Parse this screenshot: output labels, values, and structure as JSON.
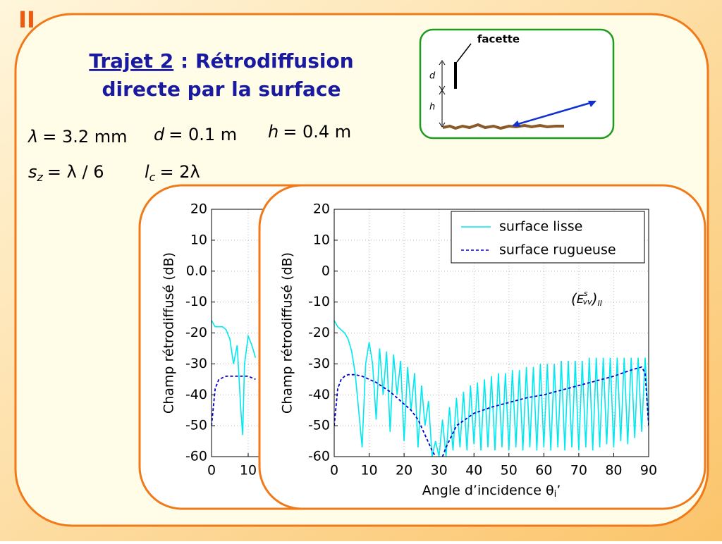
{
  "slide": {
    "section": "II",
    "title_underlined": "Trajet 2",
    "title_rest": " : Rétrodiffusion",
    "title_line2": "directe par la surface",
    "params": [
      {
        "var": "λ",
        "expr": "= 3.2 mm"
      },
      {
        "var": "d",
        "expr": "= 0.1 m"
      },
      {
        "var": "h",
        "expr": "= 0.4 m"
      },
      {
        "var": "s",
        "sub": "z",
        "expr": "= λ / 6"
      },
      {
        "var": "l",
        "sub": "c",
        "expr": "= 2λ"
      }
    ],
    "diagram": {
      "facet_label": "facette",
      "d_label": "d",
      "h_label": "h"
    }
  },
  "chart_data": [
    {
      "type": "line",
      "y_label": "Champ rétrodiffusé (dB)",
      "xlim": [
        0,
        90
      ],
      "xticks": [
        0,
        10
      ],
      "ylim": [
        -60,
        20
      ],
      "yticks": [
        -60,
        -50,
        -40,
        -30,
        -20,
        -10,
        {
          "value": 0,
          "label": "0.0"
        },
        10,
        20
      ],
      "grid": true,
      "series": [
        {
          "name": "surface lisse",
          "color": "#00e8f0",
          "line_style": "solid",
          "x": [
            0,
            1,
            2,
            3,
            4,
            5,
            6,
            7,
            8,
            8.5,
            9,
            10,
            11,
            12
          ],
          "values": [
            -16,
            -18,
            -18,
            -18,
            -19,
            -22,
            -30,
            -24,
            -45,
            -53,
            -30,
            -21,
            -24,
            -28
          ]
        },
        {
          "name": "surface rugueuse",
          "color": "#0000cc",
          "line_style": "dashed",
          "x": [
            0,
            1,
            2,
            4,
            6,
            8,
            10,
            12
          ],
          "values": [
            -50,
            -38,
            -35,
            -34,
            -34,
            -34,
            -34,
            -35
          ]
        }
      ]
    },
    {
      "type": "line",
      "y_label": "Champ rétrodiffusé (dB)",
      "x_label": "Angle d’incidence θ",
      "x_label_sub": "i",
      "x_label_suffix": "’",
      "xlim": [
        0,
        90
      ],
      "xticks": [
        0,
        10,
        20,
        30,
        40,
        50,
        60,
        70,
        80,
        90
      ],
      "ylim": [
        -60,
        20
      ],
      "yticks": [
        -60,
        -50,
        -40,
        -30,
        -20,
        -10,
        0,
        10,
        20
      ],
      "grid": true,
      "legend": "upper right",
      "annotation": {
        "open": "(",
        "base": "E",
        "sup": "s",
        "sub": "vv",
        "close": ")",
        "outer_sub": "II"
      },
      "series": [
        {
          "name": "surface lisse",
          "color": "#00e8f0",
          "line_style": "solid",
          "x": [
            0,
            1,
            2,
            3,
            4,
            5,
            6,
            7,
            8,
            9,
            10,
            11,
            12,
            13,
            14,
            15,
            16,
            17,
            18,
            19,
            20,
            21,
            22,
            23,
            24,
            25,
            26,
            27,
            28,
            29,
            30,
            31,
            32,
            33,
            34,
            35,
            36,
            37,
            38,
            39,
            40,
            41,
            42,
            43,
            44,
            45,
            46,
            47,
            48,
            49,
            50,
            51,
            52,
            53,
            54,
            55,
            56,
            57,
            58,
            59,
            60,
            61,
            62,
            63,
            64,
            65,
            66,
            67,
            68,
            69,
            70,
            71,
            72,
            73,
            74,
            75,
            76,
            77,
            78,
            79,
            80,
            81,
            82,
            83,
            84,
            85,
            86,
            87,
            88,
            89,
            90
          ],
          "values": [
            -16,
            -18,
            -19,
            -20,
            -22,
            -26,
            -33,
            -45,
            -57,
            -30,
            -23,
            -30,
            -48,
            -25,
            -40,
            -26,
            -52,
            -27,
            -40,
            -29,
            -55,
            -31,
            -45,
            -33,
            -57,
            -37,
            -50,
            -42,
            -60,
            -55,
            -60,
            -48,
            -60,
            -44,
            -58,
            -41,
            -57,
            -39,
            -58,
            -37,
            -56,
            -36,
            -58,
            -35,
            -57,
            -34,
            -58,
            -33,
            -57,
            -33,
            -58,
            -32,
            -57,
            -32,
            -58,
            -31,
            -57,
            -31,
            -58,
            -30,
            -57,
            -30,
            -58,
            -30,
            -57,
            -29,
            -58,
            -29,
            -57,
            -29,
            -58,
            -29,
            -57,
            -28,
            -58,
            -28,
            -57,
            -28,
            -56,
            -28,
            -57,
            -28,
            -55,
            -28,
            -56,
            -28,
            -54,
            -28,
            -52,
            -28,
            -50
          ]
        },
        {
          "name": "surface rugueuse",
          "color": "#0000cc",
          "line_style": "dashed",
          "x": [
            0,
            1,
            2,
            3,
            4,
            6,
            8,
            10,
            12,
            14,
            16,
            18,
            20,
            22,
            24,
            26,
            28,
            29,
            null,
            31,
            32,
            35,
            40,
            45,
            50,
            55,
            60,
            65,
            70,
            75,
            80,
            85,
            88,
            89,
            90
          ],
          "values": [
            -50,
            -38,
            -35,
            -34,
            -33.5,
            -33.5,
            -34,
            -35,
            -36,
            -37.5,
            -39,
            -41,
            -43,
            -45,
            -48,
            -53,
            -58,
            -60,
            null,
            -60,
            -57,
            -50,
            -46,
            -44,
            -42.5,
            -41,
            -40,
            -38.5,
            -37,
            -35.5,
            -34,
            -32,
            -31,
            -33,
            -50
          ]
        }
      ]
    }
  ]
}
